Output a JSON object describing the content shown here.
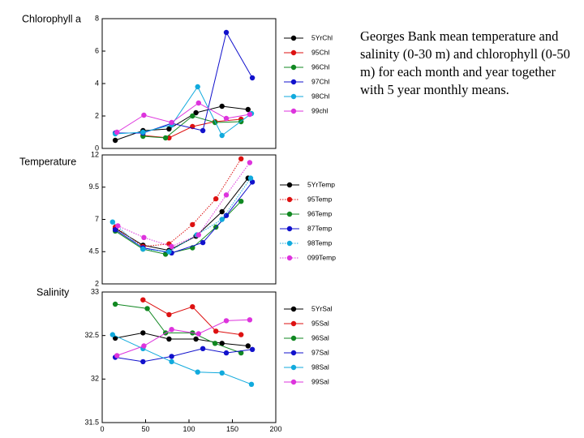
{
  "caption": "Georges Bank mean temperature and salinity (0-30 m) and chlorophyll (0-50 m) for each month and year together with 5 year monthly means.",
  "chart_data": [
    {
      "type": "line",
      "title": "Chlorophyll a",
      "xlim": [
        0,
        200
      ],
      "ylim": [
        0,
        8
      ],
      "yticks": [
        0,
        2,
        4,
        6,
        8
      ],
      "xticks": [],
      "legend_position": "right",
      "series": [
        {
          "name": "5YrChl",
          "color": "#000000",
          "dash": "solid",
          "x": [
            15,
            47,
            77,
            108,
            138,
            168
          ],
          "y": [
            0.5,
            1.1,
            1.2,
            2.2,
            2.6,
            2.4
          ]
        },
        {
          "name": "95Chl",
          "color": "#dd1111",
          "dash": "solid",
          "x": [
            47,
            77,
            104,
            130,
            160
          ],
          "y": [
            0.8,
            0.65,
            1.35,
            1.65,
            1.8
          ]
        },
        {
          "name": "96Chl",
          "color": "#118822",
          "dash": "solid",
          "x": [
            47,
            73,
            104,
            130,
            160
          ],
          "y": [
            0.75,
            0.65,
            2.0,
            1.6,
            1.65
          ]
        },
        {
          "name": "97Chl",
          "color": "#1111cc",
          "dash": "solid",
          "x": [
            15,
            47,
            80,
            116,
            143,
            173
          ],
          "y": [
            0.95,
            0.95,
            1.55,
            1.1,
            7.15,
            4.35
          ]
        },
        {
          "name": "98Chl",
          "color": "#11aadd",
          "dash": "solid",
          "x": [
            15,
            47,
            80,
            110,
            138,
            172
          ],
          "y": [
            0.9,
            1.0,
            1.45,
            3.8,
            0.8,
            2.15
          ]
        },
        {
          "name": "99chl",
          "color": "#dd33dd",
          "dash": "solid",
          "x": [
            17,
            48,
            80,
            111,
            143,
            170
          ],
          "y": [
            1.0,
            2.05,
            1.6,
            2.8,
            1.85,
            2.1
          ]
        }
      ]
    },
    {
      "type": "line",
      "title": "Temperature",
      "xlim": [
        0,
        200
      ],
      "ylim": [
        2,
        12
      ],
      "yticks": [
        2,
        4.5,
        7,
        9.5,
        12
      ],
      "xticks": [],
      "legend_position": "right",
      "series": [
        {
          "name": "5YrTemp",
          "color": "#000000",
          "dash": "solid",
          "x": [
            15,
            47,
            77,
            108,
            138,
            168
          ],
          "y": [
            6.3,
            5.0,
            4.6,
            5.7,
            7.6,
            10.2
          ]
        },
        {
          "name": "95Temp",
          "color": "#dd1111",
          "dash": "dotted",
          "x": [
            15,
            47,
            77,
            104,
            131,
            160
          ],
          "y": [
            6.4,
            4.9,
            5.1,
            6.6,
            8.6,
            11.7
          ]
        },
        {
          "name": "96Temp",
          "color": "#118822",
          "dash": "solid",
          "x": [
            15,
            47,
            73,
            104,
            131,
            160
          ],
          "y": [
            6.1,
            4.7,
            4.3,
            4.8,
            6.4,
            8.4
          ]
        },
        {
          "name": "87Temp",
          "color": "#1111cc",
          "dash": "solid",
          "x": [
            15,
            47,
            80,
            116,
            143,
            173
          ],
          "y": [
            6.2,
            4.8,
            4.4,
            5.2,
            7.3,
            9.9
          ]
        },
        {
          "name": "98Temp",
          "color": "#11aadd",
          "dash": "dotted",
          "x": [
            12,
            47,
            77,
            109,
            138,
            171
          ],
          "y": [
            6.8,
            4.7,
            4.5,
            5.8,
            7.0,
            10.2
          ]
        },
        {
          "name": "099Temp",
          "color": "#dd33dd",
          "dash": "dotted",
          "x": [
            18,
            48,
            80,
            111,
            143,
            170
          ],
          "y": [
            6.5,
            5.6,
            4.9,
            5.8,
            8.9,
            11.4
          ]
        }
      ]
    },
    {
      "type": "line",
      "title": "Salinity",
      "xlim": [
        0,
        200
      ],
      "ylim": [
        31.5,
        33
      ],
      "yticks": [
        31.5,
        32,
        32.5,
        33
      ],
      "xticks": [
        0,
        50,
        100,
        150,
        200
      ],
      "legend_position": "right",
      "series": [
        {
          "name": "5YrSal",
          "color": "#000000",
          "dash": "solid",
          "x": [
            15,
            47,
            77,
            108,
            138,
            168
          ],
          "y": [
            32.47,
            32.53,
            32.46,
            32.46,
            32.41,
            32.38
          ]
        },
        {
          "name": "95Sal",
          "color": "#dd1111",
          "dash": "solid",
          "x": [
            47,
            77,
            104,
            131,
            160
          ],
          "y": [
            32.91,
            32.74,
            32.83,
            32.55,
            32.51
          ]
        },
        {
          "name": "96Sal",
          "color": "#118822",
          "dash": "solid",
          "x": [
            15,
            52,
            73,
            104,
            130,
            160
          ],
          "y": [
            32.86,
            32.81,
            32.53,
            32.53,
            32.41,
            32.3
          ]
        },
        {
          "name": "97Sal",
          "color": "#1111cc",
          "dash": "solid",
          "x": [
            15,
            47,
            80,
            116,
            143,
            173
          ],
          "y": [
            32.25,
            32.2,
            32.26,
            32.35,
            32.3,
            32.34
          ]
        },
        {
          "name": "98Sal",
          "color": "#11aadd",
          "dash": "solid",
          "x": [
            12,
            47,
            80,
            110,
            138,
            172
          ],
          "y": [
            32.51,
            32.35,
            32.2,
            32.08,
            32.07,
            31.94
          ]
        },
        {
          "name": "99Sal",
          "color": "#dd33dd",
          "dash": "solid",
          "x": [
            17,
            48,
            80,
            111,
            143,
            170
          ],
          "y": [
            32.27,
            32.38,
            32.57,
            32.52,
            32.67,
            32.68
          ]
        }
      ]
    }
  ]
}
